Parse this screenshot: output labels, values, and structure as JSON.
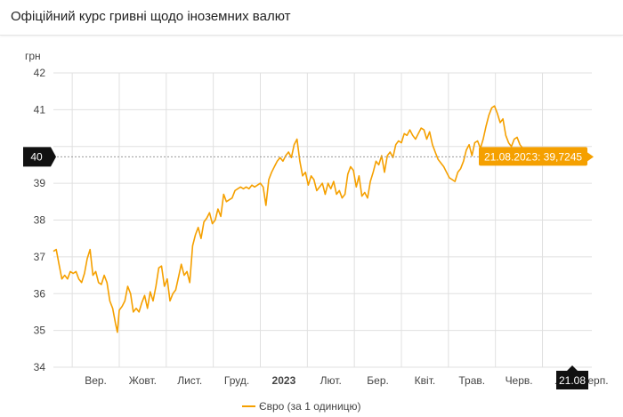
{
  "header": {
    "title": "Офіційний курс гривні щодо іноземних валют"
  },
  "chart_data": {
    "type": "line",
    "ylabel": "грн",
    "ylim": [
      34,
      42
    ],
    "yticks": [
      34,
      35,
      36,
      37,
      38,
      39,
      40,
      41,
      42
    ],
    "x_categories": [
      "Вер.",
      "Жовт.",
      "Лист.",
      "Груд.",
      "2023",
      "Лют.",
      "Бер.",
      "Квіт.",
      "Трав.",
      "Черв.",
      "Лип.",
      "21.08",
      "Серп."
    ],
    "x_labels": [
      {
        "label": "Вер.",
        "pos": 2.5
      },
      {
        "label": "Жовт.",
        "pos": 3.5
      },
      {
        "label": "Лист.",
        "pos": 4.5
      },
      {
        "label": "Груд.",
        "pos": 5.5
      },
      {
        "label": "2023",
        "pos": 6.5,
        "bold": true
      },
      {
        "label": "Лют.",
        "pos": 7.5
      },
      {
        "label": "Бер.",
        "pos": 8.5
      },
      {
        "label": "Квіт.",
        "pos": 9.5
      },
      {
        "label": "Трав.",
        "pos": 10.5
      },
      {
        "label": "Черв.",
        "pos": 11.5
      },
      {
        "label": "Лип.",
        "pos": 12.5
      },
      {
        "label": "Серп.",
        "pos": 13.1
      }
    ],
    "x_gridlines": [
      2,
      3,
      4,
      5,
      6,
      7,
      8,
      9,
      10,
      11,
      12
    ],
    "xlim": [
      1.6,
      13.05
    ],
    "series": [
      {
        "name": "Євро (за 1 одиницю)",
        "color": "#f5a000",
        "points": [
          [
            1.6,
            37.15
          ],
          [
            1.66,
            37.2
          ],
          [
            1.72,
            36.8
          ],
          [
            1.78,
            36.4
          ],
          [
            1.84,
            36.5
          ],
          [
            1.9,
            36.4
          ],
          [
            1.96,
            36.6
          ],
          [
            2.02,
            36.55
          ],
          [
            2.08,
            36.6
          ],
          [
            2.14,
            36.4
          ],
          [
            2.2,
            36.3
          ],
          [
            2.26,
            36.55
          ],
          [
            2.32,
            36.95
          ],
          [
            2.38,
            37.2
          ],
          [
            2.44,
            36.5
          ],
          [
            2.5,
            36.6
          ],
          [
            2.56,
            36.3
          ],
          [
            2.62,
            36.25
          ],
          [
            2.68,
            36.5
          ],
          [
            2.74,
            36.3
          ],
          [
            2.8,
            35.8
          ],
          [
            2.86,
            35.6
          ],
          [
            2.92,
            35.2
          ],
          [
            2.96,
            34.95
          ],
          [
            3.0,
            35.55
          ],
          [
            3.06,
            35.65
          ],
          [
            3.12,
            35.8
          ],
          [
            3.18,
            36.2
          ],
          [
            3.24,
            36.0
          ],
          [
            3.3,
            35.5
          ],
          [
            3.36,
            35.6
          ],
          [
            3.42,
            35.5
          ],
          [
            3.48,
            35.75
          ],
          [
            3.54,
            35.95
          ],
          [
            3.6,
            35.6
          ],
          [
            3.66,
            36.05
          ],
          [
            3.72,
            35.8
          ],
          [
            3.78,
            36.2
          ],
          [
            3.84,
            36.7
          ],
          [
            3.9,
            36.75
          ],
          [
            3.96,
            36.2
          ],
          [
            4.02,
            36.4
          ],
          [
            4.08,
            35.8
          ],
          [
            4.14,
            36.0
          ],
          [
            4.2,
            36.1
          ],
          [
            4.26,
            36.45
          ],
          [
            4.32,
            36.8
          ],
          [
            4.38,
            36.5
          ],
          [
            4.44,
            36.6
          ],
          [
            4.5,
            36.3
          ],
          [
            4.56,
            37.3
          ],
          [
            4.62,
            37.6
          ],
          [
            4.68,
            37.8
          ],
          [
            4.74,
            37.5
          ],
          [
            4.8,
            37.95
          ],
          [
            4.86,
            38.05
          ],
          [
            4.92,
            38.2
          ],
          [
            4.98,
            37.9
          ],
          [
            5.04,
            38.0
          ],
          [
            5.1,
            38.3
          ],
          [
            5.16,
            38.1
          ],
          [
            5.22,
            38.7
          ],
          [
            5.28,
            38.5
          ],
          [
            5.34,
            38.55
          ],
          [
            5.4,
            38.6
          ],
          [
            5.46,
            38.8
          ],
          [
            5.52,
            38.85
          ],
          [
            5.58,
            38.9
          ],
          [
            5.64,
            38.85
          ],
          [
            5.7,
            38.9
          ],
          [
            5.76,
            38.85
          ],
          [
            5.82,
            38.95
          ],
          [
            5.88,
            38.9
          ],
          [
            5.94,
            38.95
          ],
          [
            6.0,
            39.0
          ],
          [
            6.06,
            38.9
          ],
          [
            6.12,
            38.4
          ],
          [
            6.18,
            39.1
          ],
          [
            6.24,
            39.3
          ],
          [
            6.3,
            39.45
          ],
          [
            6.36,
            39.6
          ],
          [
            6.42,
            39.7
          ],
          [
            6.48,
            39.6
          ],
          [
            6.54,
            39.75
          ],
          [
            6.6,
            39.85
          ],
          [
            6.66,
            39.7
          ],
          [
            6.72,
            40.05
          ],
          [
            6.78,
            40.2
          ],
          [
            6.84,
            39.6
          ],
          [
            6.9,
            39.2
          ],
          [
            6.96,
            39.3
          ],
          [
            7.02,
            38.95
          ],
          [
            7.08,
            39.2
          ],
          [
            7.14,
            39.1
          ],
          [
            7.2,
            38.8
          ],
          [
            7.26,
            38.9
          ],
          [
            7.32,
            39.0
          ],
          [
            7.38,
            38.7
          ],
          [
            7.44,
            39.0
          ],
          [
            7.5,
            38.85
          ],
          [
            7.56,
            39.05
          ],
          [
            7.62,
            38.7
          ],
          [
            7.68,
            38.8
          ],
          [
            7.74,
            38.6
          ],
          [
            7.8,
            38.7
          ],
          [
            7.86,
            39.25
          ],
          [
            7.92,
            39.45
          ],
          [
            7.98,
            39.35
          ],
          [
            8.04,
            38.9
          ],
          [
            8.1,
            39.2
          ],
          [
            8.16,
            38.65
          ],
          [
            8.22,
            38.75
          ],
          [
            8.28,
            38.6
          ],
          [
            8.34,
            39.05
          ],
          [
            8.4,
            39.3
          ],
          [
            8.46,
            39.6
          ],
          [
            8.52,
            39.5
          ],
          [
            8.58,
            39.75
          ],
          [
            8.64,
            39.3
          ],
          [
            8.7,
            39.75
          ],
          [
            8.76,
            39.85
          ],
          [
            8.82,
            39.7
          ],
          [
            8.88,
            40.05
          ],
          [
            8.94,
            40.15
          ],
          [
            9.0,
            40.1
          ],
          [
            9.06,
            40.35
          ],
          [
            9.12,
            40.3
          ],
          [
            9.18,
            40.45
          ],
          [
            9.24,
            40.3
          ],
          [
            9.3,
            40.2
          ],
          [
            9.36,
            40.35
          ],
          [
            9.42,
            40.5
          ],
          [
            9.48,
            40.45
          ],
          [
            9.54,
            40.2
          ],
          [
            9.6,
            40.4
          ],
          [
            9.66,
            40.05
          ],
          [
            9.72,
            39.85
          ],
          [
            9.78,
            39.65
          ],
          [
            9.84,
            39.55
          ],
          [
            9.9,
            39.45
          ],
          [
            9.96,
            39.3
          ],
          [
            10.02,
            39.15
          ],
          [
            10.08,
            39.1
          ],
          [
            10.14,
            39.05
          ],
          [
            10.2,
            39.3
          ],
          [
            10.26,
            39.4
          ],
          [
            10.32,
            39.6
          ],
          [
            10.38,
            39.9
          ],
          [
            10.44,
            40.05
          ],
          [
            10.5,
            39.75
          ],
          [
            10.56,
            40.1
          ],
          [
            10.62,
            40.15
          ],
          [
            10.68,
            39.95
          ],
          [
            10.74,
            40.2
          ],
          [
            10.8,
            40.55
          ],
          [
            10.86,
            40.85
          ],
          [
            10.92,
            41.05
          ],
          [
            10.98,
            41.1
          ],
          [
            11.04,
            40.9
          ],
          [
            11.1,
            40.65
          ],
          [
            11.16,
            40.75
          ],
          [
            11.22,
            40.3
          ],
          [
            11.28,
            40.1
          ],
          [
            11.34,
            40.0
          ],
          [
            11.4,
            40.2
          ],
          [
            11.46,
            40.25
          ],
          [
            11.52,
            40.05
          ],
          [
            11.58,
            39.95
          ],
          [
            11.64,
            39.85
          ],
          [
            11.7,
            39.8
          ],
          [
            11.76,
            39.72
          ]
        ]
      }
    ],
    "legend": {
      "label": "Євро (за 1 одиницю)",
      "position": "bottom"
    },
    "crosshair": {
      "y_value": 40,
      "y_label": "40",
      "x_label": "21.08"
    },
    "callout": {
      "date": "21.08.2023",
      "value": "39,7245",
      "text": "21.08.2023: 39,7245"
    },
    "grid": true,
    "colors": {
      "line": "#f5a000",
      "grid": "#e0e0e0",
      "marker": "#111111",
      "crosshair": "#999999"
    }
  }
}
